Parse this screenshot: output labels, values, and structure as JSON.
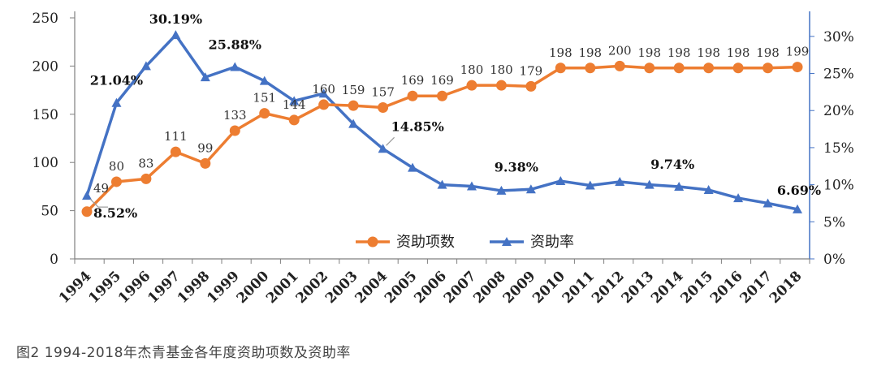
{
  "caption": "图2 1994-2018年杰青基金各年度资助项数及资助率",
  "chart_data": {
    "type": "line",
    "categories": [
      "1994",
      "1995",
      "1996",
      "1997",
      "1998",
      "1999",
      "2000",
      "2001",
      "2002",
      "2003",
      "2004",
      "2005",
      "2006",
      "2007",
      "2008",
      "2009",
      "2010",
      "2011",
      "2012",
      "2013",
      "2014",
      "2015",
      "2016",
      "2017",
      "2018"
    ],
    "series": [
      {
        "name": "资助项数",
        "axis": "left",
        "color": "#ed7d31",
        "marker": "circle",
        "values": [
          49,
          80,
          83,
          111,
          99,
          133,
          151,
          144,
          160,
          159,
          157,
          169,
          169,
          180,
          180,
          179,
          198,
          198,
          200,
          198,
          198,
          198,
          198,
          198,
          199
        ],
        "labels": [
          "49",
          "80",
          "83",
          "111",
          "99",
          "133",
          "151",
          "144",
          "160",
          "159",
          "157",
          "169",
          "169",
          "180",
          "180",
          "179",
          "198",
          "198",
          "200",
          "198",
          "198",
          "198",
          "198",
          "198",
          "199"
        ]
      },
      {
        "name": "资助率",
        "axis": "right",
        "color": "#4472c4",
        "marker": "triangle",
        "values": [
          8.52,
          21.04,
          26.0,
          30.19,
          24.5,
          25.88,
          24.0,
          21.3,
          22.3,
          18.2,
          14.85,
          12.3,
          10.0,
          9.8,
          9.2,
          9.38,
          10.5,
          9.9,
          10.4,
          10.0,
          9.74,
          9.3,
          8.2,
          7.5,
          6.69
        ],
        "point_labels": [
          {
            "index": 0,
            "text": "8.52%"
          },
          {
            "index": 1,
            "text": "21.04%"
          },
          {
            "index": 3,
            "text": "30.19%"
          },
          {
            "index": 5,
            "text": "25.88%"
          },
          {
            "index": 10,
            "text": "14.85%"
          },
          {
            "index": 15,
            "text": "9.38%"
          },
          {
            "index": 20,
            "text": "9.74%"
          },
          {
            "index": 24,
            "text": "6.69%"
          }
        ]
      }
    ],
    "y_left": {
      "min": 0,
      "max": 250,
      "ticks": [
        "0",
        "50",
        "100",
        "150",
        "200",
        "250"
      ]
    },
    "y_right": {
      "min": 0,
      "max": 32.5,
      "ticks": [
        "0%",
        "5%",
        "10%",
        "15%",
        "20%",
        "25%",
        "30%"
      ],
      "tick_values": [
        0,
        5,
        10,
        15,
        20,
        25,
        30
      ]
    },
    "legend_position": "bottom-center",
    "grid": false
  }
}
